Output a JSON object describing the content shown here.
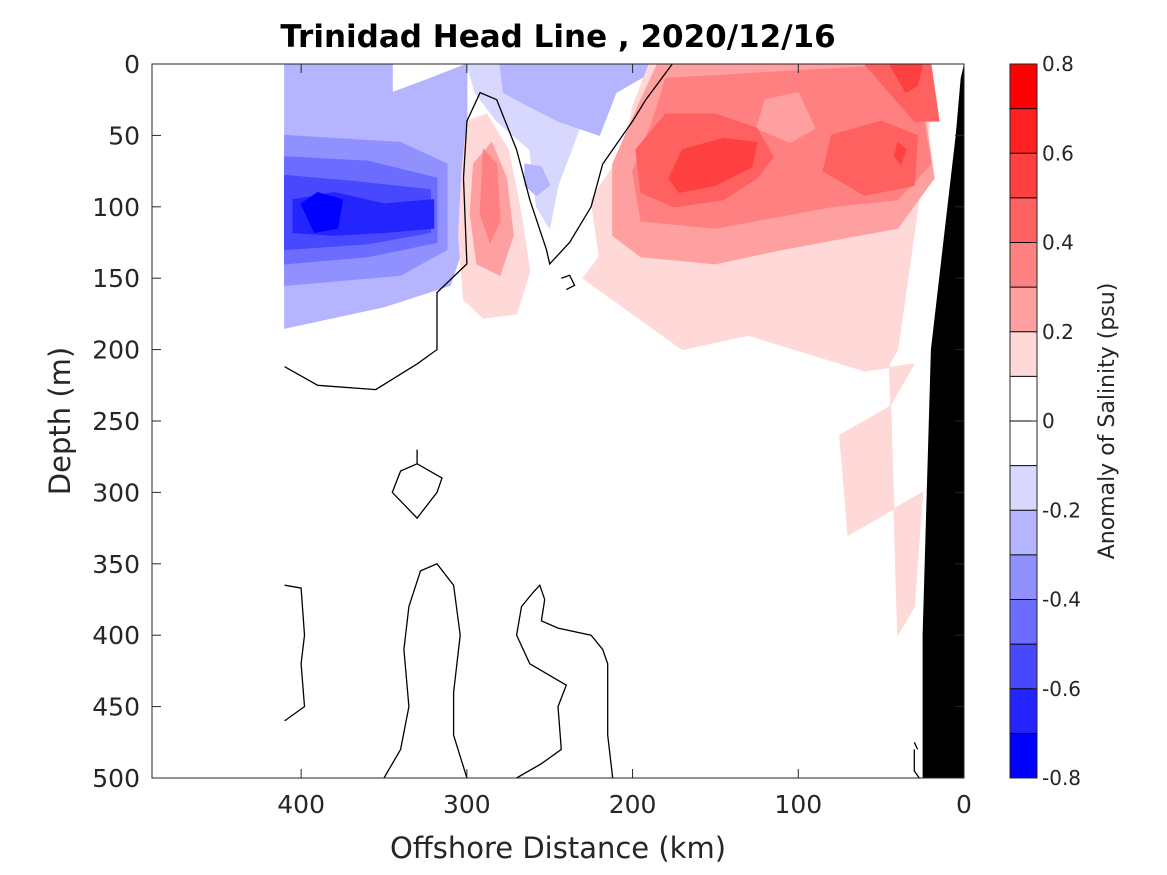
{
  "chart_data": {
    "type": "heatmap",
    "title": "Trinidad Head Line , 2020/12/16",
    "xlabel": "Offshore Distance (km)",
    "ylabel": "Depth (m)",
    "xlim": [
      490,
      0
    ],
    "ylim": [
      0,
      500
    ],
    "x_direction": "reversed",
    "y_direction": "depth increasing downward",
    "x_ticks": [
      "400",
      "300",
      "200",
      "100",
      "0"
    ],
    "y_ticks": [
      "0",
      "50",
      "100",
      "150",
      "200",
      "250",
      "300",
      "350",
      "400",
      "450",
      "500"
    ],
    "colorbar": {
      "label": "Anomaly of Salinity (psu)",
      "range": [
        -0.8,
        0.8
      ],
      "tick_labels": [
        "0.8",
        "0.6",
        "0.4",
        "0.2",
        "0",
        "-0.2",
        "-0.4",
        "-0.6",
        "-0.8"
      ],
      "levels": [
        {
          "from": 0.7,
          "to": 0.8,
          "color": "#ff0000"
        },
        {
          "from": 0.6,
          "to": 0.7,
          "color": "#ff2020"
        },
        {
          "from": 0.5,
          "to": 0.6,
          "color": "#ff4040"
        },
        {
          "from": 0.4,
          "to": 0.5,
          "color": "#ff6060"
        },
        {
          "from": 0.3,
          "to": 0.4,
          "color": "#ff8080"
        },
        {
          "from": 0.2,
          "to": 0.3,
          "color": "#ffa0a0"
        },
        {
          "from": 0.1,
          "to": 0.2,
          "color": "#ffd8d8"
        },
        {
          "from": 0.0,
          "to": 0.1,
          "color": "#ffffff"
        },
        {
          "from": -0.1,
          "to": 0.0,
          "color": "#ffffff"
        },
        {
          "from": -0.2,
          "to": -0.1,
          "color": "#d8d8ff"
        },
        {
          "from": -0.3,
          "to": -0.2,
          "color": "#b4b4ff"
        },
        {
          "from": -0.4,
          "to": -0.3,
          "color": "#9090ff"
        },
        {
          "from": -0.5,
          "to": -0.4,
          "color": "#6c6cff"
        },
        {
          "from": -0.6,
          "to": -0.5,
          "color": "#4848ff"
        },
        {
          "from": -0.7,
          "to": -0.6,
          "color": "#2424ff"
        },
        {
          "from": -0.8,
          "to": -0.7,
          "color": "#0000ff"
        }
      ]
    },
    "regions": [
      {
        "name": "offshore-fresh-anomaly",
        "color": "#b4b4ff",
        "points": [
          [
            410,
            0
          ],
          [
            345,
            0
          ],
          [
            345,
            20
          ],
          [
            322,
            10
          ],
          [
            300,
            0
          ],
          [
            300,
            120
          ],
          [
            310,
            155
          ],
          [
            350,
            170
          ],
          [
            410,
            185
          ]
        ]
      },
      {
        "name": "offshore-fresh-anomaly",
        "color": "#9090ff",
        "points": [
          [
            410,
            50
          ],
          [
            340,
            55
          ],
          [
            312,
            70
          ],
          [
            312,
            130
          ],
          [
            340,
            148
          ],
          [
            380,
            152
          ],
          [
            410,
            155
          ]
        ]
      },
      {
        "name": "offshore-fresh-anomaly",
        "color": "#6c6cff",
        "points": [
          [
            410,
            65
          ],
          [
            360,
            68
          ],
          [
            318,
            80
          ],
          [
            318,
            125
          ],
          [
            360,
            135
          ],
          [
            410,
            140
          ]
        ]
      },
      {
        "name": "offshore-fresh-anomaly",
        "color": "#4848ff",
        "points": [
          [
            410,
            78
          ],
          [
            370,
            82
          ],
          [
            322,
            88
          ],
          [
            322,
            118
          ],
          [
            360,
            126
          ],
          [
            410,
            130
          ]
        ]
      },
      {
        "name": "offshore-fresh-anomaly",
        "color": "#2424ff",
        "points": [
          [
            405,
            95
          ],
          [
            380,
            90
          ],
          [
            350,
            98
          ],
          [
            320,
            95
          ],
          [
            320,
            115
          ],
          [
            350,
            118
          ],
          [
            380,
            120
          ],
          [
            405,
            118
          ]
        ]
      },
      {
        "name": "offshore-fresh-anomaly",
        "color": "#0000ff",
        "points": [
          [
            400,
            98
          ],
          [
            390,
            90
          ],
          [
            375,
            95
          ],
          [
            378,
            115
          ],
          [
            392,
            118
          ]
        ]
      },
      {
        "name": "offshore-fresh-anomaly",
        "color": "#d8d8ff",
        "points": [
          [
            300,
            0
          ],
          [
            270,
            0
          ],
          [
            250,
            0
          ],
          [
            235,
            10
          ],
          [
            232,
            45
          ],
          [
            245,
            85
          ],
          [
            250,
            115
          ],
          [
            258,
            100
          ],
          [
            262,
            60
          ],
          [
            282,
            40
          ],
          [
            295,
            20
          ]
        ]
      },
      {
        "name": "offshore-fresh-anomaly",
        "color": "#b4b4ff",
        "points": [
          [
            280,
            0
          ],
          [
            180,
            0
          ],
          [
            210,
            20
          ],
          [
            220,
            50
          ],
          [
            245,
            40
          ],
          [
            262,
            30
          ],
          [
            278,
            20
          ]
        ]
      },
      {
        "name": "offshore-fresh-anomaly",
        "color": "#b4b4ff",
        "points": [
          [
            265,
            70
          ],
          [
            255,
            72
          ],
          [
            250,
            85
          ],
          [
            258,
            92
          ],
          [
            265,
            85
          ]
        ]
      },
      {
        "name": "subsurface-salty-core",
        "color": "#ffd8d8",
        "points": [
          [
            300,
            40
          ],
          [
            288,
            35
          ],
          [
            275,
            60
          ],
          [
            268,
            100
          ],
          [
            262,
            145
          ],
          [
            270,
            175
          ],
          [
            290,
            178
          ],
          [
            302,
            165
          ],
          [
            305,
            120
          ],
          [
            303,
            75
          ]
        ]
      },
      {
        "name": "subsurface-salty-core",
        "color": "#ffa0a0",
        "points": [
          [
            296,
            70
          ],
          [
            285,
            55
          ],
          [
            276,
            80
          ],
          [
            272,
            120
          ],
          [
            280,
            148
          ],
          [
            294,
            140
          ],
          [
            298,
            105
          ]
        ]
      },
      {
        "name": "subsurface-salty-core",
        "color": "#ff8080",
        "points": [
          [
            290,
            60
          ],
          [
            282,
            70
          ],
          [
            280,
            110
          ],
          [
            286,
            125
          ],
          [
            292,
            105
          ]
        ]
      },
      {
        "name": "nearshore-salty-anomaly",
        "color": "#ffd8d8",
        "points": [
          [
            190,
            0
          ],
          [
            30,
            0
          ],
          [
            18,
            20
          ],
          [
            40,
            200
          ],
          [
            45,
            210
          ],
          [
            40,
            400
          ],
          [
            30,
            380
          ],
          [
            25,
            300
          ],
          [
            40,
            310
          ],
          [
            70,
            330
          ],
          [
            75,
            260
          ],
          [
            45,
            240
          ],
          [
            30,
            210
          ],
          [
            60,
            215
          ],
          [
            130,
            190
          ],
          [
            170,
            200
          ],
          [
            230,
            150
          ],
          [
            220,
            135
          ],
          [
            225,
            95
          ],
          [
            205,
            60
          ],
          [
            200,
            30
          ]
        ]
      },
      {
        "name": "nearshore-salty-anomaly",
        "color": "#ffa0a0",
        "points": [
          [
            185,
            0
          ],
          [
            28,
            0
          ],
          [
            18,
            80
          ],
          [
            40,
            115
          ],
          [
            110,
            130
          ],
          [
            150,
            140
          ],
          [
            195,
            135
          ],
          [
            212,
            120
          ],
          [
            212,
            70
          ],
          [
            195,
            25
          ]
        ]
      },
      {
        "name": "nearshore-salty-anomaly",
        "color": "#ff8080",
        "points": [
          [
            180,
            10
          ],
          [
            30,
            0
          ],
          [
            20,
            70
          ],
          [
            40,
            95
          ],
          [
            80,
            100
          ],
          [
            150,
            115
          ],
          [
            195,
            110
          ],
          [
            200,
            75
          ],
          [
            188,
            40
          ]
        ]
      },
      {
        "name": "nearshore-salty-anomaly",
        "color": "#ffa0a0",
        "points": [
          [
            120,
            25
          ],
          [
            100,
            20
          ],
          [
            90,
            45
          ],
          [
            105,
            55
          ],
          [
            125,
            45
          ]
        ]
      },
      {
        "name": "nearshore-salty-anomaly",
        "color": "#ff6060",
        "points": [
          [
            180,
            35
          ],
          [
            150,
            35
          ],
          [
            125,
            45
          ],
          [
            115,
            65
          ],
          [
            125,
            80
          ],
          [
            145,
            95
          ],
          [
            175,
            100
          ],
          [
            195,
            90
          ],
          [
            198,
            60
          ]
        ]
      },
      {
        "name": "nearshore-salty-anomaly",
        "color": "#ff6060",
        "points": [
          [
            80,
            50
          ],
          [
            50,
            40
          ],
          [
            28,
            50
          ],
          [
            30,
            85
          ],
          [
            60,
            92
          ],
          [
            85,
            75
          ]
        ]
      },
      {
        "name": "nearshore-salty-anomaly",
        "color": "#ff6060",
        "points": [
          [
            60,
            0
          ],
          [
            20,
            0
          ],
          [
            15,
            40
          ],
          [
            30,
            40
          ],
          [
            45,
            20
          ]
        ]
      },
      {
        "name": "nearshore-salty-anomaly",
        "color": "#ff4040",
        "points": [
          [
            170,
            60
          ],
          [
            145,
            52
          ],
          [
            125,
            55
          ],
          [
            128,
            72
          ],
          [
            150,
            85
          ],
          [
            172,
            90
          ],
          [
            178,
            80
          ]
        ]
      },
      {
        "name": "nearshore-salty-anomaly",
        "color": "#ff4040",
        "points": [
          [
            45,
            0
          ],
          [
            25,
            0
          ],
          [
            28,
            15
          ],
          [
            35,
            20
          ]
        ]
      },
      {
        "name": "nearshore-salty-anomaly",
        "color": "#ff4040",
        "points": [
          [
            40,
            55
          ],
          [
            35,
            60
          ],
          [
            38,
            70
          ],
          [
            42,
            65
          ]
        ]
      }
    ],
    "zero_contours": [
      [
        [
          410,
          212
        ],
        [
          390,
          225
        ],
        [
          355,
          228
        ],
        [
          330,
          210
        ],
        [
          318,
          200
        ],
        [
          318,
          160
        ],
        [
          300,
          140
        ],
        [
          302,
          80
        ],
        [
          300,
          40
        ],
        [
          292,
          20
        ],
        [
          282,
          25
        ],
        [
          270,
          60
        ],
        [
          262,
          95
        ],
        [
          252,
          130
        ],
        [
          250,
          140
        ],
        [
          238,
          125
        ],
        [
          225,
          100
        ],
        [
          218,
          70
        ],
        [
          200,
          40
        ],
        [
          192,
          25
        ],
        [
          176,
          0
        ]
      ],
      [
        [
          243,
          150
        ],
        [
          238,
          148
        ],
        [
          235,
          155
        ],
        [
          240,
          158
        ]
      ],
      [
        [
          330,
          270
        ],
        [
          330,
          280
        ],
        [
          315,
          290
        ],
        [
          318,
          300
        ],
        [
          330,
          318
        ],
        [
          345,
          300
        ],
        [
          340,
          285
        ],
        [
          330,
          280
        ]
      ],
      [
        [
          410,
          365
        ],
        [
          400,
          367
        ],
        [
          398,
          400
        ],
        [
          400,
          420
        ],
        [
          398,
          450
        ],
        [
          410,
          460
        ]
      ],
      [
        [
          350,
          500
        ],
        [
          340,
          480
        ],
        [
          335,
          450
        ],
        [
          338,
          410
        ],
        [
          335,
          380
        ],
        [
          328,
          355
        ],
        [
          318,
          350
        ],
        [
          308,
          365
        ],
        [
          304,
          400
        ],
        [
          308,
          440
        ],
        [
          308,
          470
        ],
        [
          300,
          500
        ]
      ],
      [
        [
          270,
          500
        ],
        [
          255,
          490
        ],
        [
          243,
          480
        ],
        [
          245,
          450
        ],
        [
          240,
          435
        ],
        [
          262,
          420
        ],
        [
          270,
          400
        ],
        [
          267,
          380
        ],
        [
          260,
          370
        ],
        [
          256,
          365
        ],
        [
          253,
          375
        ],
        [
          255,
          390
        ],
        [
          245,
          395
        ],
        [
          225,
          400
        ],
        [
          218,
          410
        ],
        [
          215,
          420
        ],
        [
          215,
          440
        ],
        [
          215,
          470
        ],
        [
          212,
          500
        ]
      ],
      [
        [
          30,
          480
        ],
        [
          30,
          495
        ],
        [
          27,
          500
        ]
      ],
      [
        [
          30,
          475
        ],
        [
          28,
          480
        ]
      ]
    ],
    "land_mask": [
      [
        0,
        0
      ],
      [
        0,
        500
      ],
      [
        25,
        500
      ],
      [
        25,
        400
      ],
      [
        20,
        200
      ],
      [
        10,
        100
      ],
      [
        5,
        50
      ],
      [
        2,
        10
      ],
      [
        0,
        0
      ]
    ]
  }
}
